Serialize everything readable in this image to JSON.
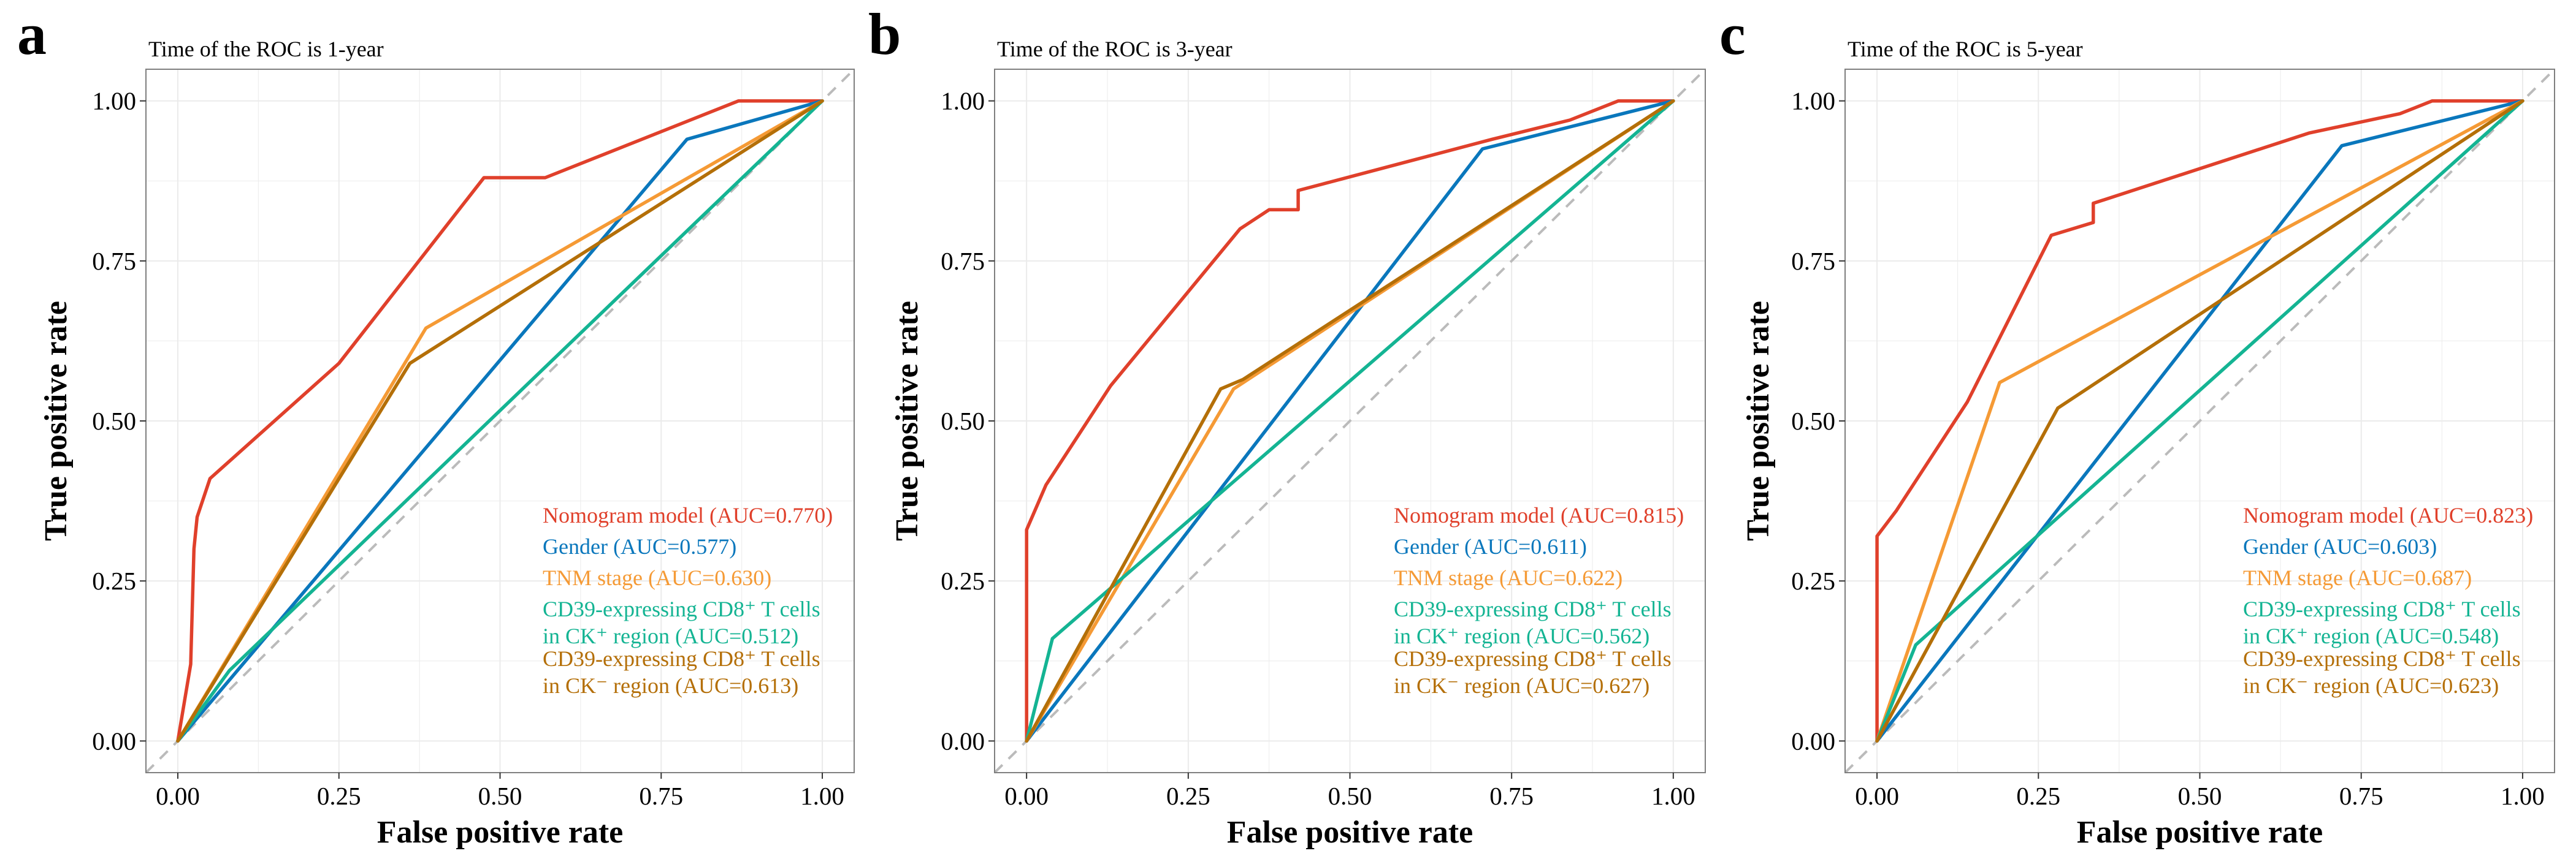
{
  "colors": {
    "nomogram": "#E0402B",
    "gender": "#0A77BC",
    "tnm": "#F59A35",
    "ck_pos": "#14B493",
    "ck_neg": "#B46F08",
    "diagonal": "#BBBBBB",
    "grid": "#EBEBEB",
    "frame": "#7F7F7F"
  },
  "chart_data": [
    {
      "type": "line",
      "panel_label": "a",
      "title": "Time of the ROC is  1-year",
      "xlabel": "False positive rate",
      "ylabel": "True positive rate",
      "xlim": [
        0,
        1
      ],
      "ylim": [
        0,
        1
      ],
      "xticks": [
        "0.00",
        "0.25",
        "0.50",
        "0.75",
        "1.00"
      ],
      "yticks": [
        "0.00",
        "0.25",
        "0.50",
        "0.75",
        "1.00"
      ],
      "reference_line": "diagonal",
      "grid": true,
      "legend_position": "bottom-right",
      "series": [
        {
          "key": "nomogram",
          "name": "Nomogram model (AUC=0.770)",
          "legend_lines": [
            "Nomogram model (AUC=0.770)"
          ],
          "points": [
            [
              0,
              0
            ],
            [
              0.02,
              0.12
            ],
            [
              0.025,
              0.3
            ],
            [
              0.03,
              0.35
            ],
            [
              0.04,
              0.38
            ],
            [
              0.05,
              0.41
            ],
            [
              0.25,
              0.59
            ],
            [
              0.475,
              0.88
            ],
            [
              0.57,
              0.88
            ],
            [
              0.87,
              1.0
            ],
            [
              1.0,
              1.0
            ]
          ]
        },
        {
          "key": "gender",
          "name": "Gender (AUC=0.577)",
          "legend_lines": [
            "Gender (AUC=0.577)"
          ],
          "points": [
            [
              0,
              0
            ],
            [
              0.79,
              0.94
            ],
            [
              1.0,
              1.0
            ]
          ]
        },
        {
          "key": "tnm",
          "name": "TNM stage (AUC=0.630)",
          "legend_lines": [
            "TNM stage (AUC=0.630)"
          ],
          "points": [
            [
              0,
              0
            ],
            [
              0.385,
              0.645
            ],
            [
              1.0,
              1.0
            ]
          ]
        },
        {
          "key": "ck_pos",
          "name": "CD39-expressing CD8+ T cells in CK+ region (AUC=0.512)",
          "legend_lines": [
            "CD39-expressing CD8⁺ T cells",
            "in CK⁺ region (AUC=0.512)"
          ],
          "points": [
            [
              0,
              0
            ],
            [
              0.08,
              0.11
            ],
            [
              1.0,
              1.0
            ]
          ]
        },
        {
          "key": "ck_neg",
          "name": "CD39-expressing CD8+ T cells in CK- region (AUC=0.613)",
          "legend_lines": [
            "CD39-expressing CD8⁺ T cells",
            "in CK⁻ region (AUC=0.613)"
          ],
          "points": [
            [
              0,
              0
            ],
            [
              0.36,
              0.59
            ],
            [
              1.0,
              1.0
            ]
          ]
        }
      ]
    },
    {
      "type": "line",
      "panel_label": "b",
      "title": "Time of the ROC is  3-year",
      "xlabel": "False positive rate",
      "ylabel": "True positive rate",
      "xlim": [
        0,
        1
      ],
      "ylim": [
        0,
        1
      ],
      "xticks": [
        "0.00",
        "0.25",
        "0.50",
        "0.75",
        "1.00"
      ],
      "yticks": [
        "0.00",
        "0.25",
        "0.50",
        "0.75",
        "1.00"
      ],
      "reference_line": "diagonal",
      "grid": true,
      "legend_position": "bottom-right",
      "series": [
        {
          "key": "nomogram",
          "name": "Nomogram model (AUC=0.815)",
          "legend_lines": [
            "Nomogram model (AUC=0.815)"
          ],
          "points": [
            [
              0,
              0
            ],
            [
              0,
              0.33
            ],
            [
              0.03,
              0.4
            ],
            [
              0.13,
              0.555
            ],
            [
              0.33,
              0.8
            ],
            [
              0.375,
              0.83
            ],
            [
              0.42,
              0.83
            ],
            [
              0.42,
              0.86
            ],
            [
              0.72,
              0.94
            ],
            [
              0.84,
              0.97
            ],
            [
              0.915,
              1.0
            ],
            [
              1.0,
              1.0
            ]
          ]
        },
        {
          "key": "gender",
          "name": "Gender (AUC=0.611)",
          "legend_lines": [
            "Gender (AUC=0.611)"
          ],
          "points": [
            [
              0,
              0
            ],
            [
              0.705,
              0.925
            ],
            [
              1.0,
              1.0
            ]
          ]
        },
        {
          "key": "tnm",
          "name": "TNM stage (AUC=0.622)",
          "legend_lines": [
            "TNM stage (AUC=0.622)"
          ],
          "points": [
            [
              0,
              0
            ],
            [
              0.32,
              0.55
            ],
            [
              1.0,
              1.0
            ]
          ]
        },
        {
          "key": "ck_pos",
          "name": "CD39-expressing CD8+ T cells in CK+ region (AUC=0.562)",
          "legend_lines": [
            "CD39-expressing CD8⁺ T cells",
            "in CK⁺ region (AUC=0.562)"
          ],
          "points": [
            [
              0,
              0
            ],
            [
              0.04,
              0.16
            ],
            [
              1.0,
              1.0
            ]
          ]
        },
        {
          "key": "ck_neg",
          "name": "CD39-expressing CD8+ T cells in CK- region (AUC=0.627)",
          "legend_lines": [
            "CD39-expressing CD8⁺ T cells",
            "in CK⁻ region (AUC=0.627)"
          ],
          "points": [
            [
              0,
              0
            ],
            [
              0.3,
              0.55
            ],
            [
              0.335,
              0.565
            ],
            [
              1.0,
              1.0
            ]
          ]
        }
      ]
    },
    {
      "type": "line",
      "panel_label": "c",
      "title": "Time of the ROC is  5-year",
      "xlabel": "False positive rate",
      "ylabel": "True positive rate",
      "xlim": [
        0,
        1
      ],
      "ylim": [
        0,
        1
      ],
      "xticks": [
        "0.00",
        "0.25",
        "0.50",
        "0.75",
        "1.00"
      ],
      "yticks": [
        "0.00",
        "0.25",
        "0.50",
        "0.75",
        "1.00"
      ],
      "reference_line": "diagonal",
      "grid": true,
      "legend_position": "bottom-right",
      "series": [
        {
          "key": "nomogram",
          "name": "Nomogram model (AUC=0.823)",
          "legend_lines": [
            "Nomogram model (AUC=0.823)"
          ],
          "points": [
            [
              0,
              0
            ],
            [
              0,
              0.32
            ],
            [
              0.03,
              0.36
            ],
            [
              0.14,
              0.53
            ],
            [
              0.27,
              0.79
            ],
            [
              0.335,
              0.81
            ],
            [
              0.335,
              0.84
            ],
            [
              0.67,
              0.95
            ],
            [
              0.81,
              0.98
            ],
            [
              0.86,
              1.0
            ],
            [
              1.0,
              1.0
            ]
          ]
        },
        {
          "key": "gender",
          "name": "Gender (AUC=0.603)",
          "legend_lines": [
            "Gender (AUC=0.603)"
          ],
          "points": [
            [
              0,
              0
            ],
            [
              0.72,
              0.93
            ],
            [
              1.0,
              1.0
            ]
          ]
        },
        {
          "key": "tnm",
          "name": "TNM stage (AUC=0.687)",
          "legend_lines": [
            "TNM stage (AUC=0.687)"
          ],
          "points": [
            [
              0,
              0
            ],
            [
              0.19,
              0.56
            ],
            [
              1.0,
              1.0
            ]
          ]
        },
        {
          "key": "ck_pos",
          "name": "CD39-expressing CD8+ T cells in CK+ region (AUC=0.548)",
          "legend_lines": [
            "CD39-expressing CD8⁺ T cells",
            "in CK⁺ region (AUC=0.548)"
          ],
          "points": [
            [
              0,
              0
            ],
            [
              0.06,
              0.15
            ],
            [
              1.0,
              1.0
            ]
          ]
        },
        {
          "key": "ck_neg",
          "name": "CD39-expressing CD8+ T cells in CK- region (AUC=0.623)",
          "legend_lines": [
            "CD39-expressing CD8⁺ T cells",
            "in CK⁻ region (AUC=0.623)"
          ],
          "points": [
            [
              0,
              0
            ],
            [
              0.28,
              0.52
            ],
            [
              1.0,
              1.0
            ]
          ]
        }
      ]
    }
  ]
}
